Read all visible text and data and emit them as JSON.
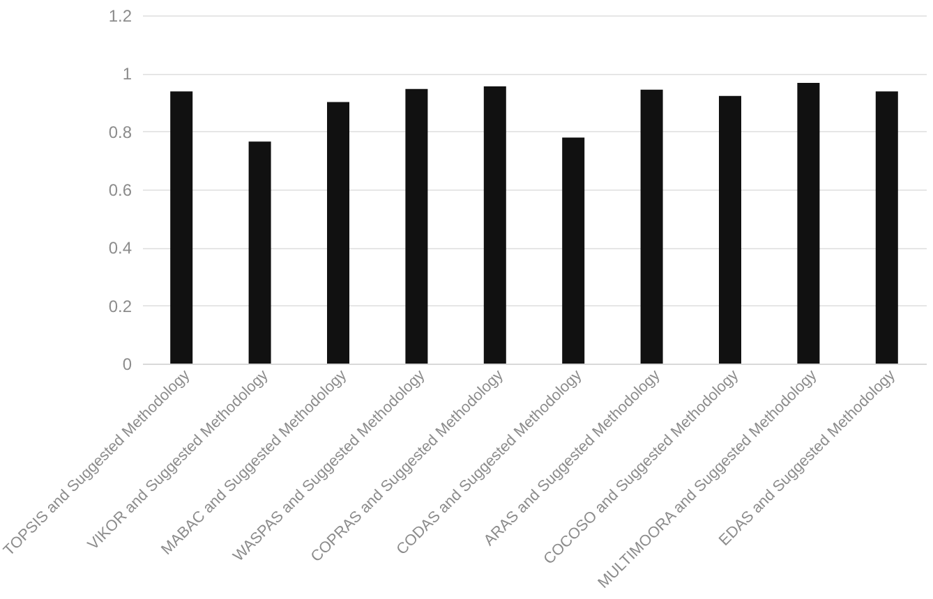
{
  "chart_data": {
    "type": "bar",
    "categories": [
      "TOPSIS and Suggested Methodology",
      "VIKOR and Suggested Methodology",
      "MABAC and Suggested Methodology",
      "WASPAS and Suggested Methodology",
      "COPRAS and Suggested Methodology",
      "CODAS and Suggested Methodology",
      "ARAS and Suggested Methodology",
      "COCOSO and Suggested Methodology",
      "MULTIMOORA and Suggested Methodology",
      "EDAS and Suggested Methodology"
    ],
    "values": [
      0.938,
      0.765,
      0.901,
      0.946,
      0.955,
      0.779,
      0.944,
      0.922,
      0.967,
      0.938
    ],
    "color": "#111111",
    "ylim": [
      0,
      1.2
    ],
    "yticks": [
      0,
      0.2,
      0.4,
      0.6,
      0.8,
      1,
      1.2
    ],
    "grid": "y"
  }
}
